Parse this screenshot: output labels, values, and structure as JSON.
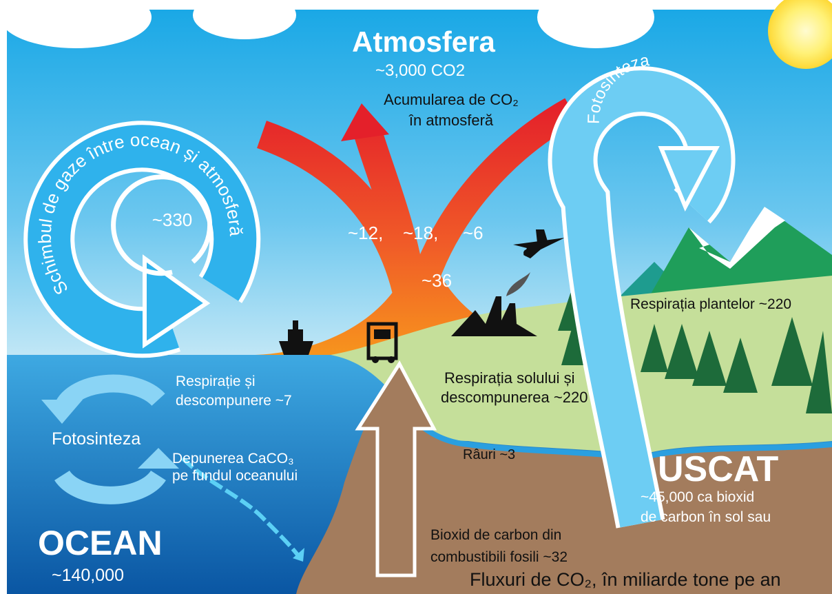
{
  "atmosphere": {
    "title": "Atmosfera",
    "amount": "~3,000 CO2",
    "accumulation": [
      "Acumularea de CO₂",
      "în atmosferă"
    ]
  },
  "ocean_exchange": {
    "label": "Schimbul de gaze între ocean și atmosferă",
    "value": "~330"
  },
  "emissions": {
    "flows": [
      "~12,",
      "~18,",
      "~6"
    ],
    "total": "~36"
  },
  "land_photosynthesis": {
    "label": "Fotosinteza"
  },
  "plant_respiration": "Respirația plantelor ~220",
  "ocean_respiration": [
    "Respirație și",
    "descompunere ~7"
  ],
  "ocean_photosynthesis": "Fotosinteza",
  "caco3": [
    "Depunerea CaCO₃",
    "pe fundul oceanului"
  ],
  "soil_respiration": [
    "Respirația solului și",
    "descompunerea ~220"
  ],
  "rivers": "Râuri ~3",
  "land": {
    "title": "USCAT",
    "amount": [
      "~45,000 ca bioxid",
      "de carbon în sol sau"
    ]
  },
  "fossil": [
    "Bioxid de carbon din",
    "combustibili fosili ~32"
  ],
  "ocean": {
    "title": "OCEAN",
    "amount": "~140,000"
  },
  "footer": "Fluxuri de CO₂, în miliarde tone pe an"
}
